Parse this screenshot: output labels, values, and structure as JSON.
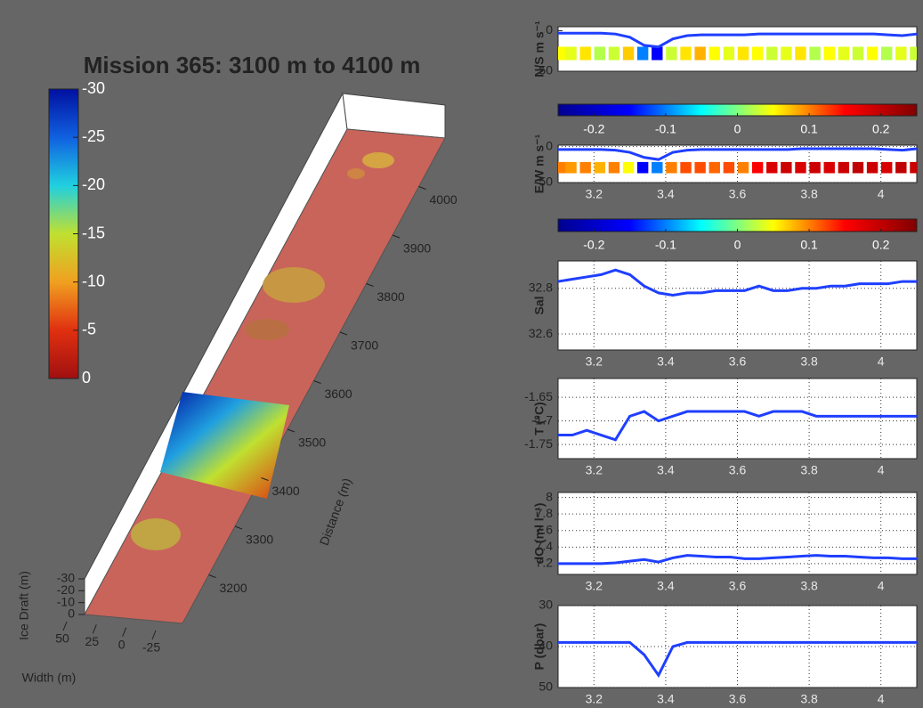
{
  "chart_data": [
    {
      "type": "surface3d",
      "title": "Mission 365: 3100 m to 4100 m",
      "colorbar": {
        "ylim": [
          0,
          -30
        ],
        "yticks": [
          -30,
          -25,
          -20,
          -15,
          -10,
          -5,
          0
        ],
        "colors": [
          "#a01010",
          "#e03010",
          "#f0a020",
          "#c0e030",
          "#20d0e0",
          "#1060e0",
          "#0010a0"
        ]
      },
      "distance_label": "Distance (m)",
      "distance_lim": [
        3100,
        4100
      ],
      "distance_ticks": [
        3200,
        3300,
        3400,
        3500,
        3600,
        3700,
        3800,
        3900,
        4000
      ],
      "draft_label": "Ice Draft (m)",
      "draft_lim": [
        0,
        -30
      ],
      "draft_ticks": [
        -30,
        -20,
        -10,
        0
      ],
      "width_label": "Width (m)",
      "width_lim": [
        50,
        -25
      ],
      "width_ticks": [
        50,
        25,
        0,
        -25
      ]
    },
    {
      "type": "line",
      "ylabel": "N/S m s⁻¹",
      "xlim": [
        3.1,
        4.1
      ],
      "ylim": [
        50,
        -5
      ],
      "yticks": [
        0,
        50
      ],
      "color": "#1f3fff",
      "x": [
        3.1,
        3.14,
        3.18,
        3.22,
        3.26,
        3.3,
        3.34,
        3.38,
        3.42,
        3.46,
        3.5,
        3.54,
        3.58,
        3.62,
        3.66,
        3.7,
        3.74,
        3.78,
        3.82,
        3.86,
        3.9,
        3.94,
        3.98,
        4.02,
        4.06,
        4.1
      ],
      "values": [
        3,
        3,
        3,
        3,
        4,
        8,
        18,
        20,
        10,
        6,
        5,
        5,
        5,
        5,
        4,
        4,
        4,
        4,
        4,
        4,
        4,
        4,
        4,
        5,
        6,
        4
      ],
      "bars": {
        "values": [
          0.05,
          0.04,
          0.06,
          0.02,
          0.03,
          0.07,
          -0.1,
          -0.15,
          0.03,
          0.06,
          0.08,
          0.05,
          0.04,
          0.06,
          0.05,
          0.03,
          0.04,
          0.06,
          0.02,
          0.05,
          0.04,
          0.03,
          0.05,
          0.02,
          0.04,
          0.03
        ]
      }
    },
    {
      "type": "colorbar",
      "xlim": [
        -0.25,
        0.25
      ],
      "xticks": [
        -0.2,
        -0.1,
        0,
        0.1,
        0.2
      ],
      "colors": [
        "#00008f",
        "#0000ff",
        "#00ffff",
        "#ffff00",
        "#ff0000",
        "#800000"
      ]
    },
    {
      "type": "line",
      "ylabel": "E/W m s⁻¹",
      "xlim": [
        3.1,
        4.1
      ],
      "ylim": [
        50,
        -2
      ],
      "yticks": [
        0,
        50
      ],
      "xticks": [
        3.2,
        3.4,
        3.6,
        3.8,
        4
      ],
      "grid": true,
      "color": "#1f3fff",
      "x": [
        3.1,
        3.14,
        3.18,
        3.22,
        3.26,
        3.3,
        3.34,
        3.38,
        3.42,
        3.46,
        3.5,
        3.54,
        3.58,
        3.62,
        3.66,
        3.7,
        3.74,
        3.78,
        3.82,
        3.86,
        3.9,
        3.94,
        3.98,
        4.02,
        4.06,
        4.1
      ],
      "values": [
        4,
        4,
        4,
        4,
        5,
        8,
        15,
        18,
        8,
        5,
        4,
        4,
        4,
        4,
        4,
        4,
        4,
        3,
        3,
        3,
        3,
        3,
        3,
        4,
        5,
        3
      ],
      "bars": {
        "values": [
          0.1,
          0.09,
          0.1,
          0.08,
          0.1,
          0.05,
          -0.15,
          -0.1,
          0.1,
          0.12,
          0.12,
          0.11,
          0.12,
          0.1,
          0.15,
          0.18,
          0.19,
          0.18,
          0.19,
          0.18,
          0.19,
          0.2,
          0.19,
          0.18,
          0.2,
          0.19
        ]
      }
    },
    {
      "type": "colorbar",
      "xlim": [
        -0.25,
        0.25
      ],
      "xticks": [
        -0.2,
        -0.1,
        0,
        0.1,
        0.2
      ],
      "colors": [
        "#00008f",
        "#0000ff",
        "#00ffff",
        "#ffff00",
        "#ff0000",
        "#800000"
      ]
    },
    {
      "type": "line",
      "ylabel": "Sal",
      "xlim": [
        3.1,
        4.1
      ],
      "ylim": [
        32.53,
        32.92
      ],
      "yticks": [
        32.6,
        32.8
      ],
      "xticks": [
        3.2,
        3.4,
        3.6,
        3.8,
        4
      ],
      "grid": true,
      "color": "#1f3fff",
      "x": [
        3.1,
        3.14,
        3.18,
        3.22,
        3.26,
        3.3,
        3.34,
        3.38,
        3.42,
        3.46,
        3.5,
        3.54,
        3.58,
        3.62,
        3.66,
        3.7,
        3.74,
        3.78,
        3.82,
        3.86,
        3.9,
        3.94,
        3.98,
        4.02,
        4.06,
        4.1
      ],
      "values": [
        32.83,
        32.84,
        32.85,
        32.86,
        32.88,
        32.86,
        32.81,
        32.78,
        32.77,
        32.78,
        32.78,
        32.79,
        32.79,
        32.79,
        32.81,
        32.79,
        32.79,
        32.8,
        32.8,
        32.81,
        32.81,
        32.82,
        32.82,
        32.82,
        32.83,
        32.83
      ]
    },
    {
      "type": "line",
      "ylabel": "T (°C)",
      "xlim": [
        3.1,
        4.1
      ],
      "ylim": [
        -1.78,
        -1.61
      ],
      "yticks": [
        -1.75,
        -1.7,
        -1.65
      ],
      "xticks": [
        3.2,
        3.4,
        3.6,
        3.8,
        4
      ],
      "grid": true,
      "color": "#1f3fff",
      "x": [
        3.1,
        3.14,
        3.18,
        3.22,
        3.26,
        3.3,
        3.34,
        3.38,
        3.42,
        3.46,
        3.5,
        3.54,
        3.58,
        3.62,
        3.66,
        3.7,
        3.74,
        3.78,
        3.82,
        3.86,
        3.9,
        3.94,
        3.98,
        4.02,
        4.06,
        4.1
      ],
      "values": [
        -1.73,
        -1.73,
        -1.72,
        -1.73,
        -1.74,
        -1.69,
        -1.68,
        -1.7,
        -1.69,
        -1.68,
        -1.68,
        -1.68,
        -1.68,
        -1.68,
        -1.69,
        -1.68,
        -1.68,
        -1.68,
        -1.69,
        -1.69,
        -1.69,
        -1.69,
        -1.69,
        -1.69,
        -1.69,
        -1.69
      ]
    },
    {
      "type": "line",
      "ylabel": "dO (ml l⁻¹)",
      "xlim": [
        3.1,
        4.1
      ],
      "ylim": [
        7.07,
        8.06
      ],
      "yticks": [
        7.2,
        7.4,
        7.6,
        7.8,
        8
      ],
      "xticks": [
        3.2,
        3.4,
        3.6,
        3.8,
        4
      ],
      "grid": true,
      "color": "#1f3fff",
      "x": [
        3.1,
        3.14,
        3.18,
        3.22,
        3.26,
        3.3,
        3.34,
        3.38,
        3.42,
        3.46,
        3.5,
        3.54,
        3.58,
        3.62,
        3.66,
        3.7,
        3.74,
        3.78,
        3.82,
        3.86,
        3.9,
        3.94,
        3.98,
        4.02,
        4.06,
        4.1
      ],
      "values": [
        7.2,
        7.2,
        7.2,
        7.2,
        7.21,
        7.23,
        7.25,
        7.22,
        7.27,
        7.3,
        7.29,
        7.28,
        7.28,
        7.26,
        7.26,
        7.27,
        7.28,
        7.29,
        7.3,
        7.29,
        7.29,
        7.28,
        7.27,
        7.27,
        7.26,
        7.26
      ]
    },
    {
      "type": "line",
      "ylabel": "P (dbar)",
      "xlim": [
        3.1,
        4.1
      ],
      "ylim": [
        50,
        30
      ],
      "yticks": [
        30,
        40,
        50
      ],
      "xticks": [
        3.2,
        3.4,
        3.6,
        3.8,
        4
      ],
      "grid": true,
      "color": "#1f3fff",
      "x": [
        3.1,
        3.14,
        3.18,
        3.22,
        3.26,
        3.3,
        3.34,
        3.38,
        3.42,
        3.46,
        3.5,
        3.54,
        3.58,
        3.62,
        3.66,
        3.7,
        3.74,
        3.78,
        3.82,
        3.86,
        3.9,
        3.94,
        3.98,
        4.02,
        4.06,
        4.1
      ],
      "values": [
        39,
        39,
        39,
        39,
        39,
        39,
        42,
        47,
        40,
        39,
        39,
        39,
        39,
        39,
        39,
        39,
        39,
        39,
        39,
        39,
        39,
        39,
        39,
        39,
        39,
        39
      ]
    }
  ]
}
